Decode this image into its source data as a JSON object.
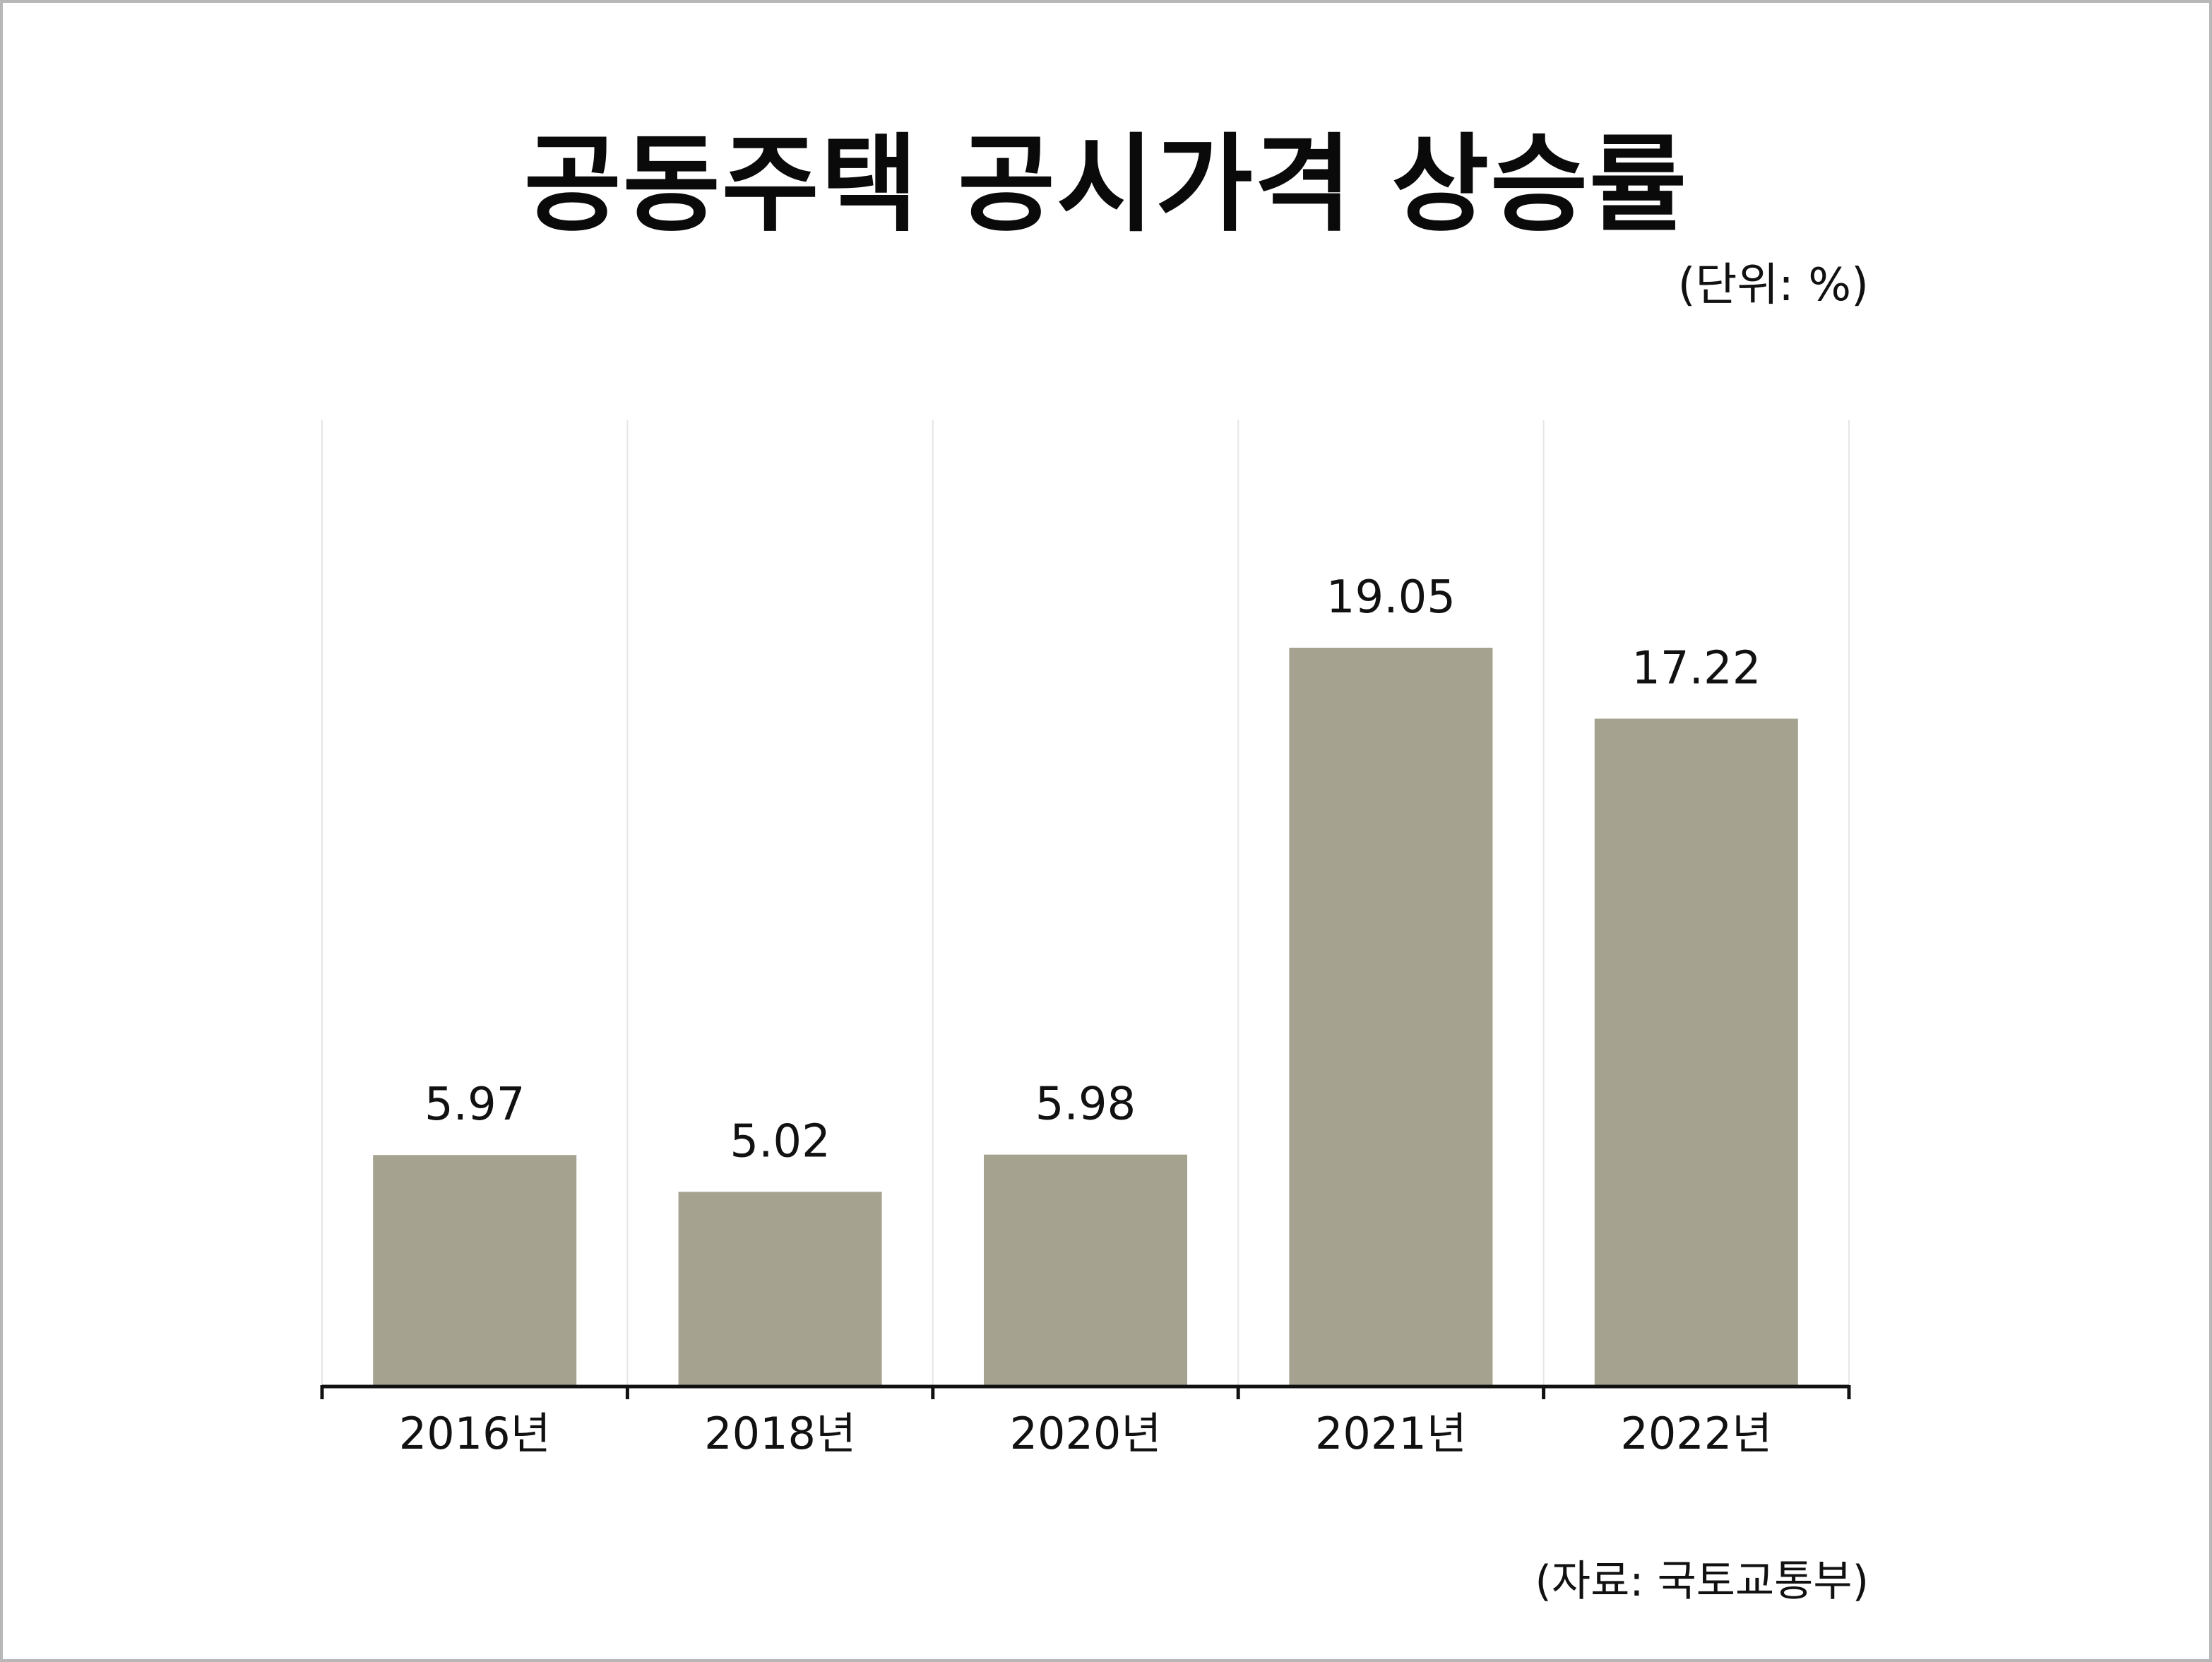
{
  "colors": {
    "bar": "#a5a28f",
    "axis": "#111111",
    "grid": "#e6e6e6",
    "frame": "#b7b7b7"
  },
  "chart_data": {
    "type": "bar",
    "title": "공동주택 공시가격 상승률",
    "unit_note": "(단위: %)",
    "source_note": "(자료: 국토교통부)",
    "categories": [
      "2016년",
      "2018년",
      "2020년",
      "2021년",
      "2022년"
    ],
    "values": [
      5.97,
      5.02,
      5.98,
      19.05,
      17.22
    ],
    "value_labels": [
      "5.97",
      "5.02",
      "5.98",
      "19.05",
      "17.22"
    ],
    "ylim": [
      0,
      25
    ],
    "grid": true,
    "legend": "none"
  }
}
